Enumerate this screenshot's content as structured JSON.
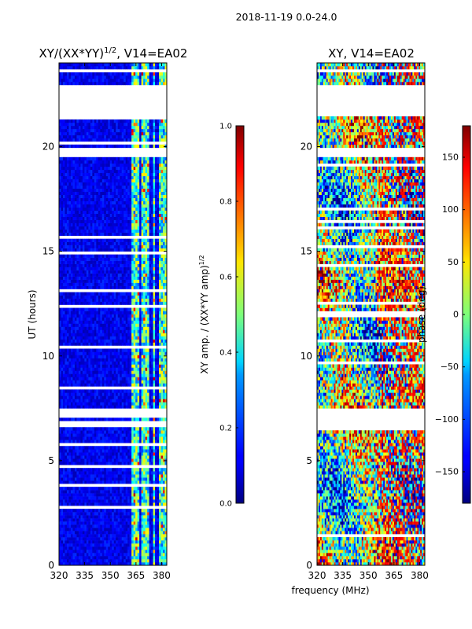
{
  "figure_title": "2018-11-19 0.0-24.0",
  "shared_xlabel": "frequency (MHz)",
  "chart_data": [
    {
      "type": "heatmap",
      "id": "amp",
      "title": "XY/(XX*YY)",
      "title_exponent": "1/2",
      "title_suffix": ", V14=EA02",
      "xlabel": "",
      "ylabel": "UT (hours)",
      "xlim": [
        320,
        383
      ],
      "ylim": [
        0,
        24
      ],
      "xticks": [
        320,
        335,
        350,
        365,
        380
      ],
      "yticks": [
        0,
        5,
        10,
        15,
        20
      ],
      "colorbar": {
        "label": "XY amp. / (XX*YY amp)",
        "label_exponent": "1/2",
        "range": [
          0.0,
          1.0
        ],
        "ticks": [
          "0.0",
          "0.2",
          "0.4",
          "0.6",
          "0.8",
          "1.0"
        ],
        "colormap": "jet"
      },
      "blank_hours": [
        [
          21.4,
          22.8
        ],
        [
          19.5,
          19.8
        ],
        [
          7.0,
          7.4
        ],
        [
          6.6,
          6.8
        ],
        [
          23.5,
          23.6
        ],
        [
          23.1,
          23.2
        ]
      ],
      "description_bands": [
        [
          362,
          366
        ],
        [
          368,
          372
        ],
        [
          374,
          376
        ],
        [
          378,
          382
        ]
      ]
    },
    {
      "type": "heatmap",
      "id": "phase",
      "title": "XY, V14=EA02",
      "xlabel": "frequency (MHz)",
      "ylabel": "",
      "xlim": [
        320,
        383
      ],
      "ylim": [
        0,
        24
      ],
      "xticks": [
        320,
        335,
        350,
        365,
        380
      ],
      "yticks": [
        0,
        5,
        10,
        15,
        20
      ],
      "colorbar": {
        "label": "phase (deg)",
        "range": [
          -180,
          180
        ],
        "ticks": [
          "−150",
          "−100",
          "−50",
          "0",
          "50",
          "100",
          "150"
        ],
        "tick_values": [
          -150,
          -100,
          -50,
          0,
          50,
          100,
          150
        ],
        "colormap": "jet"
      },
      "blank_hours": [
        [
          21.4,
          22.8
        ],
        [
          19.5,
          19.8
        ],
        [
          7.0,
          7.4
        ],
        [
          6.6,
          6.8
        ],
        [
          23.5,
          23.6
        ],
        [
          23.1,
          23.2
        ]
      ]
    }
  ]
}
